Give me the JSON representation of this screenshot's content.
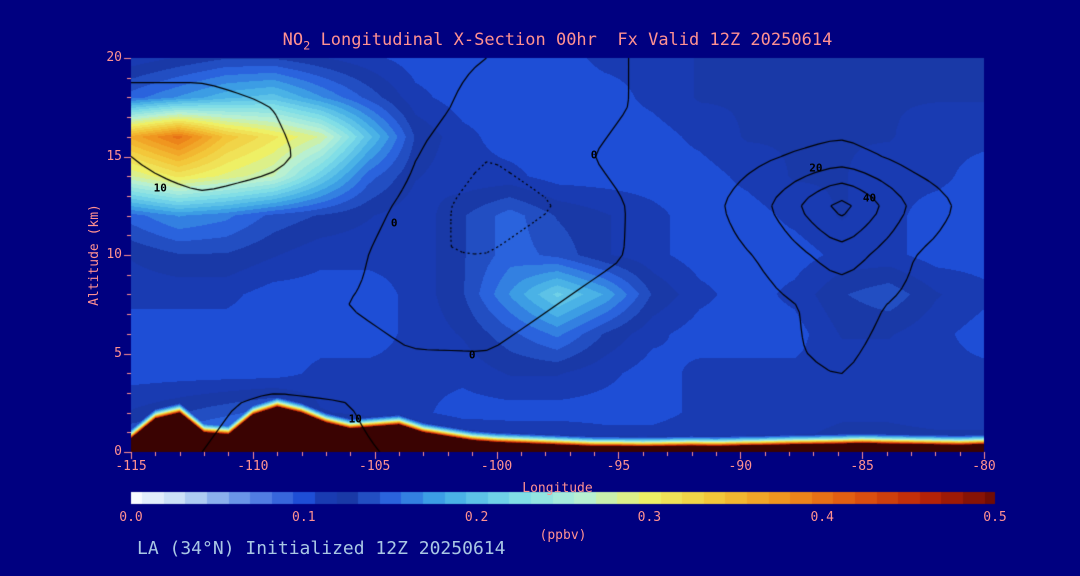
{
  "theme": {
    "background": "#000080",
    "label_color": "#ff9191",
    "footer_color": "#a9c7e4",
    "contour_color": "#000000",
    "tick_color": "#ff9191"
  },
  "title": {
    "prefix": "NO",
    "sub": "2",
    "rest": " Longitudinal X-Section 00hr  Fx Valid 12Z 20250614"
  },
  "footer": {
    "text": "LA (34°N) Initialized 12Z 20250614"
  },
  "axes": {
    "x": {
      "label": "Longitude",
      "min": -115,
      "max": -80,
      "ticks": [
        -115,
        -110,
        -105,
        -100,
        -95,
        -90,
        -85,
        -80
      ],
      "minor_step": 1
    },
    "y": {
      "label": "Altitude (km)",
      "min": 0,
      "max": 20,
      "ticks": [
        0,
        5,
        10,
        15,
        20
      ],
      "minor_step": 1
    }
  },
  "colorbar": {
    "label": "(ppbv)",
    "min": 0.0,
    "max": 0.5,
    "ticks": [
      "0.0",
      "0.1",
      "0.2",
      "0.3",
      "0.4",
      "0.5"
    ],
    "stops": [
      [
        0.0,
        "#f8fbff"
      ],
      [
        0.03,
        "#c3dcf5"
      ],
      [
        0.06,
        "#6f9ae9"
      ],
      [
        0.1,
        "#1e4ed6"
      ],
      [
        0.12,
        "#16309c"
      ],
      [
        0.15,
        "#2a63dd"
      ],
      [
        0.18,
        "#3fa8e6"
      ],
      [
        0.22,
        "#7adbe8"
      ],
      [
        0.26,
        "#b4f0d8"
      ],
      [
        0.3,
        "#eef065"
      ],
      [
        0.34,
        "#f3c437"
      ],
      [
        0.38,
        "#ef8f1c"
      ],
      [
        0.42,
        "#df5410"
      ],
      [
        0.46,
        "#b92307"
      ],
      [
        0.5,
        "#700c04"
      ],
      [
        0.55,
        "#3a0302"
      ]
    ]
  },
  "chart_data": {
    "type": "heatmap",
    "title": "NO2 Longitudinal X-Section 00hr Fx Valid 12Z 20250614",
    "xlabel": "Longitude",
    "ylabel": "Altitude (km)",
    "units": "ppbv",
    "x_range": [
      -115,
      -80
    ],
    "y_range": [
      0,
      20
    ],
    "grid": {
      "nx": 19,
      "ny": 11,
      "x_start": -115,
      "x_end": -80,
      "y_start": 20,
      "y_end": 0,
      "values": [
        [
          0.11,
          0.12,
          0.13,
          0.13,
          0.12,
          0.11,
          0.1,
          0.1,
          0.1,
          0.1,
          0.11,
          0.11,
          0.12,
          0.12,
          0.12,
          0.12,
          0.12,
          0.12,
          0.12
        ],
        [
          0.15,
          0.17,
          0.19,
          0.2,
          0.17,
          0.14,
          0.11,
          0.1,
          0.1,
          0.1,
          0.1,
          0.11,
          0.12,
          0.12,
          0.12,
          0.12,
          0.12,
          0.12,
          0.12
        ],
        [
          0.36,
          0.4,
          0.34,
          0.31,
          0.28,
          0.2,
          0.13,
          0.11,
          0.1,
          0.1,
          0.1,
          0.1,
          0.11,
          0.12,
          0.12,
          0.12,
          0.12,
          0.11,
          0.11
        ],
        [
          0.28,
          0.31,
          0.29,
          0.27,
          0.21,
          0.15,
          0.12,
          0.11,
          0.11,
          0.1,
          0.1,
          0.1,
          0.1,
          0.11,
          0.12,
          0.12,
          0.11,
          0.11,
          0.1
        ],
        [
          0.15,
          0.17,
          0.16,
          0.14,
          0.13,
          0.12,
          0.11,
          0.13,
          0.15,
          0.13,
          0.12,
          0.11,
          0.1,
          0.1,
          0.11,
          0.12,
          0.11,
          0.1,
          0.1
        ],
        [
          0.12,
          0.13,
          0.13,
          0.12,
          0.11,
          0.11,
          0.11,
          0.13,
          0.15,
          0.14,
          0.12,
          0.11,
          0.1,
          0.1,
          0.1,
          0.11,
          0.11,
          0.1,
          0.1
        ],
        [
          0.11,
          0.11,
          0.11,
          0.1,
          0.1,
          0.1,
          0.11,
          0.13,
          0.17,
          0.21,
          0.18,
          0.13,
          0.11,
          0.1,
          0.11,
          0.13,
          0.14,
          0.12,
          0.11
        ],
        [
          0.1,
          0.1,
          0.1,
          0.1,
          0.1,
          0.1,
          0.11,
          0.12,
          0.14,
          0.16,
          0.13,
          0.11,
          0.1,
          0.1,
          0.1,
          0.12,
          0.12,
          0.11,
          0.1
        ],
        [
          0.1,
          0.1,
          0.1,
          0.1,
          0.11,
          0.11,
          0.11,
          0.11,
          0.12,
          0.12,
          0.11,
          0.1,
          0.11,
          0.11,
          0.11,
          0.11,
          0.11,
          0.11,
          0.11
        ],
        [
          0.12,
          0.13,
          0.14,
          0.15,
          0.12,
          0.115,
          0.11,
          0.1,
          0.1,
          0.1,
          0.1,
          0.1,
          0.11,
          0.11,
          0.11,
          0.115,
          0.115,
          0.11,
          0.11
        ],
        [
          0.16,
          0.17,
          0.18,
          0.18,
          0.17,
          0.16,
          0.15,
          0.14,
          0.13,
          0.13,
          0.12,
          0.12,
          0.12,
          0.12,
          0.12,
          0.13,
          0.13,
          0.13,
          0.13
        ]
      ]
    },
    "terrain": {
      "x_start": -115,
      "x_step": 1,
      "surface_value": 0.5,
      "interior_value": 0.55,
      "decay_km": 0.35,
      "heights": [
        0.7,
        1.7,
        2.0,
        1.0,
        0.9,
        1.9,
        2.3,
        2.0,
        1.5,
        1.2,
        1.3,
        1.4,
        1.0,
        0.8,
        0.6,
        0.5,
        0.45,
        0.4,
        0.35,
        0.3,
        0.3,
        0.28,
        0.3,
        0.32,
        0.3,
        0.33,
        0.35,
        0.38,
        0.4,
        0.42,
        0.45,
        0.42,
        0.4,
        0.38,
        0.36,
        0.4
      ]
    },
    "contours": {
      "nx": 13,
      "ny": 9,
      "x_start": -115,
      "x_end": -80,
      "y_start": 20,
      "y_end": 0,
      "levels_solid": [
        0,
        10,
        20,
        30,
        40
      ],
      "levels_dotted": [
        -2
      ],
      "values": [
        [
          8,
          6,
          4,
          2,
          1,
          0,
          -1,
          0,
          1,
          2,
          2,
          1,
          0
        ],
        [
          12,
          14,
          10,
          4,
          1,
          -1,
          -2,
          0,
          2,
          3,
          3,
          2,
          1
        ],
        [
          10,
          15,
          12,
          5,
          0,
          -2,
          -1,
          1,
          3,
          9,
          14,
          6,
          2
        ],
        [
          6,
          8,
          6,
          2,
          -1,
          -3,
          -2,
          0,
          5,
          20,
          46,
          18,
          4
        ],
        [
          3,
          4,
          3,
          1,
          -2,
          -2,
          -1,
          0,
          4,
          12,
          26,
          10,
          3
        ],
        [
          1,
          2,
          1,
          0,
          -1,
          -1,
          0,
          1,
          3,
          8,
          13,
          8,
          2
        ],
        [
          2,
          3,
          2,
          1,
          0,
          0,
          1,
          2,
          5,
          9,
          11,
          7,
          3
        ],
        [
          4,
          8,
          12,
          10.5,
          5,
          2,
          2,
          3,
          6,
          8,
          9,
          6,
          4
        ],
        [
          6,
          10,
          14,
          12,
          8,
          4,
          3,
          4,
          6,
          7,
          8,
          6,
          5
        ]
      ]
    },
    "contour_labels": [
      {
        "text": "10",
        "lon": -113.8,
        "alt": 13.4
      },
      {
        "text": "0",
        "lon": -104.2,
        "alt": 11.6
      },
      {
        "text": "0",
        "lon": -96.0,
        "alt": 15.1
      },
      {
        "text": "20",
        "lon": -86.9,
        "alt": 14.4
      },
      {
        "text": "40",
        "lon": -84.7,
        "alt": 12.9
      },
      {
        "text": "0",
        "lon": -101.0,
        "alt": 4.9
      },
      {
        "text": "10",
        "lon": -105.8,
        "alt": 1.7
      }
    ]
  }
}
